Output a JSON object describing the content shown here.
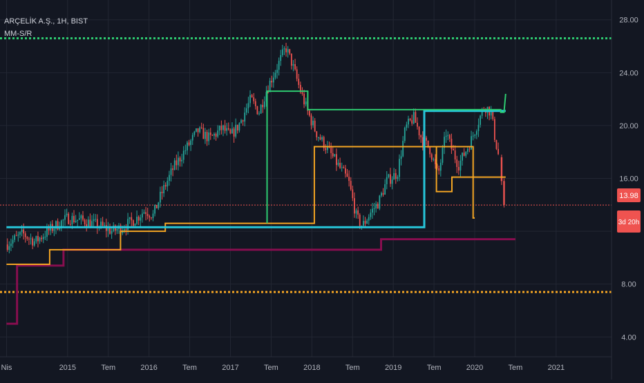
{
  "legend": {
    "symbol": "ARÇELİK A.Ş., 1H, BIST",
    "indicator": "MM-S/R"
  },
  "price_label": {
    "value": "13.98",
    "color": "#ef5350"
  },
  "countdown_label": {
    "value": "3d 20h",
    "color": "#ef5350"
  },
  "colors": {
    "background": "#131722",
    "grid": "#232733",
    "axis_text": "#b2b5be",
    "up": "#26a69a",
    "down": "#ef5350",
    "green_dotted": "#2ecc71",
    "orange_dotted": "#f5a623",
    "red_dotted": "#ef5350"
  },
  "chart_data": {
    "type": "candlestick",
    "title": "ARÇELİK A.Ş., 1H, BIST",
    "indicator": "MM-S/R",
    "last_price": 13.98,
    "y_ticks": [
      4.0,
      8.0,
      12.0,
      16.0,
      20.0,
      24.0,
      28.0
    ],
    "y_tick_labels": [
      "4.00",
      "8.00",
      "",
      "16.00",
      "20.00",
      "24.00",
      "28.00"
    ],
    "ylim": [
      2.5,
      29.5
    ],
    "x_ticks": [
      {
        "t": 2014.25,
        "label": "Nis"
      },
      {
        "t": 2015.0,
        "label": "2015"
      },
      {
        "t": 2015.5,
        "label": "Tem"
      },
      {
        "t": 2016.0,
        "label": "2016"
      },
      {
        "t": 2016.5,
        "label": "Tem"
      },
      {
        "t": 2017.0,
        "label": "2017"
      },
      {
        "t": 2017.5,
        "label": "Tem"
      },
      {
        "t": 2018.0,
        "label": "2018"
      },
      {
        "t": 2018.5,
        "label": "Tem"
      },
      {
        "t": 2019.0,
        "label": "2019"
      },
      {
        "t": 2019.5,
        "label": "Tem"
      },
      {
        "t": 2020.0,
        "label": "2020"
      },
      {
        "t": 2020.5,
        "label": "Tem"
      },
      {
        "t": 2021.0,
        "label": "2021"
      }
    ],
    "price_path": [
      [
        2014.25,
        11.0
      ],
      [
        2014.45,
        11.8
      ],
      [
        2014.6,
        11.2
      ],
      [
        2014.8,
        12.2
      ],
      [
        2015.0,
        13.0
      ],
      [
        2015.2,
        12.8
      ],
      [
        2015.4,
        12.4
      ],
      [
        2015.55,
        12.0
      ],
      [
        2015.7,
        12.4
      ],
      [
        2015.85,
        13.0
      ],
      [
        2015.95,
        13.6
      ],
      [
        2016.05,
        13.2
      ],
      [
        2016.15,
        14.8
      ],
      [
        2016.3,
        16.8
      ],
      [
        2016.45,
        18.2
      ],
      [
        2016.6,
        19.6
      ],
      [
        2016.75,
        19.0
      ],
      [
        2016.9,
        19.8
      ],
      [
        2017.0,
        19.2
      ],
      [
        2017.1,
        20.0
      ],
      [
        2017.25,
        22.0
      ],
      [
        2017.35,
        21.0
      ],
      [
        2017.45,
        22.8
      ],
      [
        2017.6,
        24.8
      ],
      [
        2017.68,
        25.9
      ],
      [
        2017.75,
        24.8
      ],
      [
        2017.85,
        22.8
      ],
      [
        2017.95,
        21.0
      ],
      [
        2018.05,
        19.5
      ],
      [
        2018.15,
        18.6
      ],
      [
        2018.3,
        17.2
      ],
      [
        2018.45,
        15.8
      ],
      [
        2018.55,
        13.0
      ],
      [
        2018.62,
        12.4
      ],
      [
        2018.72,
        13.4
      ],
      [
        2018.82,
        14.2
      ],
      [
        2018.92,
        15.8
      ],
      [
        2019.05,
        16.4
      ],
      [
        2019.15,
        19.8
      ],
      [
        2019.25,
        20.6
      ],
      [
        2019.35,
        19.0
      ],
      [
        2019.45,
        18.2
      ],
      [
        2019.55,
        16.2
      ],
      [
        2019.65,
        19.5
      ],
      [
        2019.7,
        18.5
      ],
      [
        2019.8,
        17.0
      ],
      [
        2019.95,
        18.8
      ],
      [
        2020.05,
        20.4
      ],
      [
        2020.12,
        21.5
      ],
      [
        2020.2,
        21.0
      ],
      [
        2020.25,
        19.0
      ],
      [
        2020.3,
        17.5
      ]
    ],
    "last_candles": [
      {
        "t": 2020.33,
        "o": 17.6,
        "h": 17.8,
        "l": 15.5,
        "c": 15.8
      },
      {
        "t": 2020.36,
        "o": 15.8,
        "h": 16.0,
        "l": 13.8,
        "c": 13.98
      }
    ],
    "horizontal_levels": [
      {
        "name": "resistance-dotted",
        "value": 26.6,
        "style": "dotted",
        "color": "#2ecc71"
      },
      {
        "name": "support-dotted",
        "value": 7.4,
        "style": "dotted",
        "color": "#f5a623"
      },
      {
        "name": "current-price",
        "value": 13.98,
        "style": "dotted",
        "color": "#ef5350"
      }
    ],
    "step_lines": [
      {
        "name": "maroon-line",
        "color": "#880e4f",
        "width": 3,
        "points": [
          [
            2014.25,
            5.0
          ],
          [
            2014.38,
            5.0
          ],
          [
            2014.38,
            9.4
          ],
          [
            2014.95,
            9.4
          ],
          [
            2014.95,
            10.6
          ],
          [
            2018.85,
            10.6
          ],
          [
            2018.85,
            11.4
          ],
          [
            2020.5,
            11.4
          ]
        ]
      },
      {
        "name": "orange-line",
        "color": "#f5a623",
        "width": 2,
        "points": [
          [
            2014.25,
            9.5
          ],
          [
            2014.38,
            9.5
          ],
          [
            2014.78,
            9.5
          ],
          [
            2014.78,
            10.6
          ],
          [
            2015.3,
            10.6
          ],
          [
            2015.3,
            10.6
          ],
          [
            2015.65,
            10.6
          ],
          [
            2015.65,
            12.0
          ],
          [
            2016.2,
            12.0
          ],
          [
            2016.2,
            12.6
          ],
          [
            2018.03,
            12.6
          ],
          [
            2018.03,
            18.4
          ],
          [
            2019.98,
            18.4
          ],
          [
            2019.98,
            13.0
          ],
          [
            2020.0,
            13.0
          ]
        ]
      },
      {
        "name": "orange-line-2",
        "color": "#f5a623",
        "width": 2,
        "points": [
          [
            2019.55,
            18.4
          ],
          [
            2019.98,
            18.4
          ]
        ]
      },
      {
        "name": "orange-line-3",
        "color": "#f5a623",
        "width": 2,
        "points": [
          [
            2019.53,
            18.4
          ],
          [
            2019.53,
            15.0
          ],
          [
            2019.72,
            15.0
          ],
          [
            2019.72,
            16.1
          ],
          [
            2020.38,
            16.1
          ]
        ]
      },
      {
        "name": "cyan-line",
        "color": "#26c6da",
        "width": 3,
        "points": [
          [
            2014.25,
            12.3
          ],
          [
            2019.38,
            12.3
          ],
          [
            2019.38,
            21.1
          ],
          [
            2020.38,
            21.1
          ]
        ]
      },
      {
        "name": "green-line",
        "color": "#2ecc71",
        "width": 2,
        "points": [
          [
            2017.45,
            12.6
          ],
          [
            2017.45,
            22.6
          ],
          [
            2017.95,
            22.6
          ],
          [
            2017.95,
            21.2
          ],
          [
            2020.32,
            21.2
          ],
          [
            2020.32,
            21.0
          ],
          [
            2020.36,
            21.0
          ],
          [
            2020.38,
            22.4
          ]
        ]
      }
    ]
  }
}
